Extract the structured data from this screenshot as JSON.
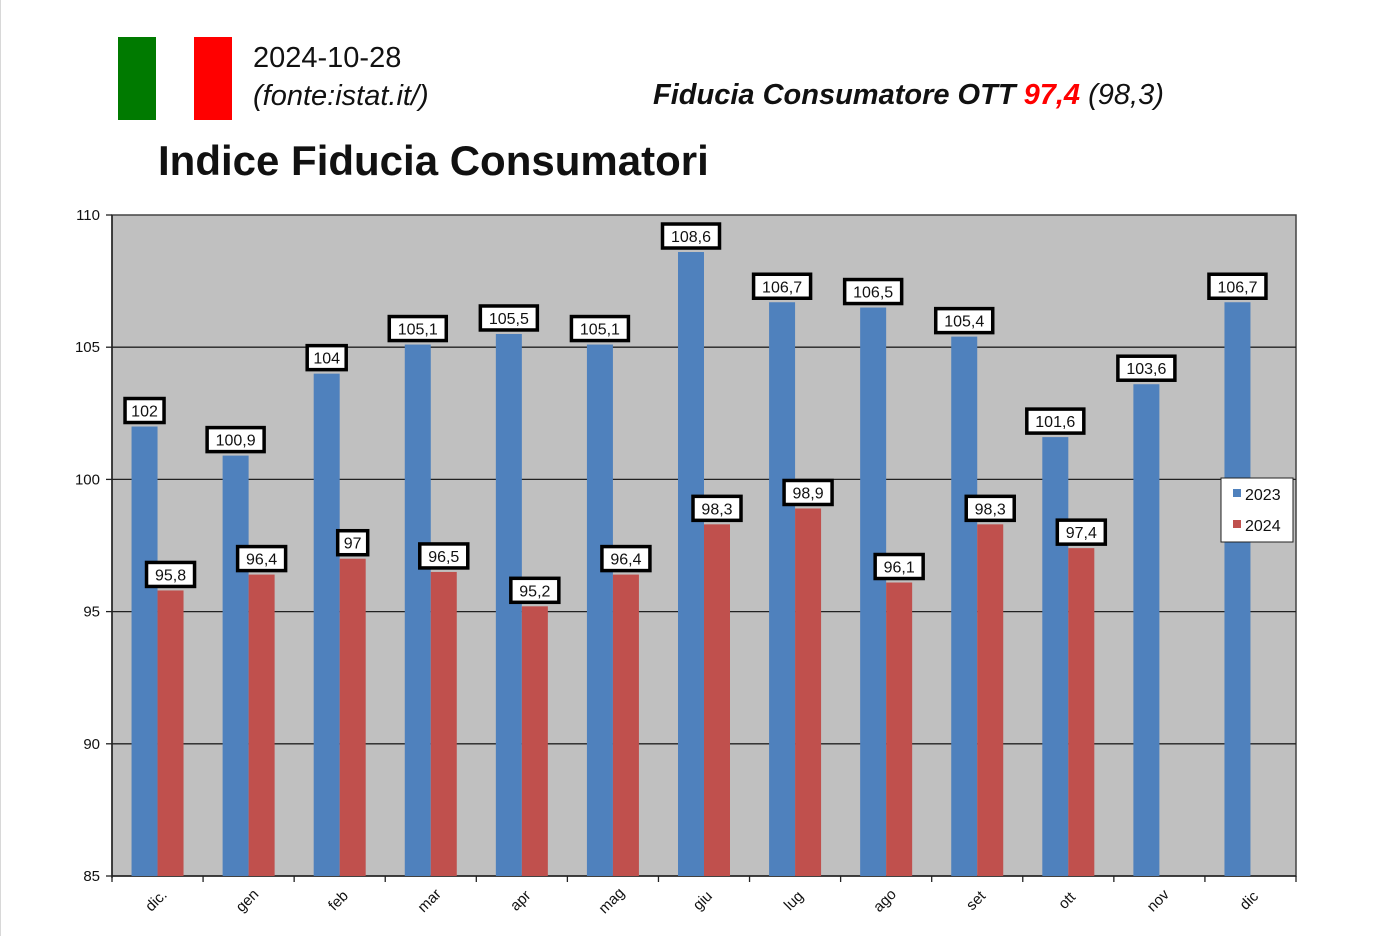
{
  "header": {
    "flag": {
      "colors": [
        "#007a00",
        "#ffffff",
        "#ff0000"
      ]
    },
    "date": "2024-10-28",
    "source_prefix": "(fonte:",
    "source_link": "istat.it/",
    "source_suffix": ")",
    "headline_label": "Fiducia Consumatore OTT",
    "headline_value": "97,4",
    "headline_prev": "(98,3)"
  },
  "chart_data": {
    "type": "bar",
    "title": "Indice Fiducia Consumatori",
    "xlabel": "",
    "ylabel": "",
    "ylim": [
      85,
      110
    ],
    "yticks": [
      85,
      90,
      95,
      100,
      105,
      110
    ],
    "grid": true,
    "legend_position": "right",
    "categories": [
      "dic.",
      "gen",
      "feb",
      "mar",
      "apr",
      "mag",
      "giu",
      "lug",
      "ago",
      "set",
      "ott",
      "nov",
      "dic"
    ],
    "series": [
      {
        "name": "2023",
        "color": "#4f81bd",
        "values": [
          102,
          100.9,
          104,
          105.1,
          105.5,
          105.1,
          108.6,
          106.7,
          106.5,
          105.4,
          101.6,
          103.6,
          106.7
        ],
        "labels": [
          "102",
          "100,9",
          "104",
          "105,1",
          "105,5",
          "105,1",
          "108,6",
          "106,7",
          "106,5",
          "105,4",
          "101,6",
          "103,6",
          "106,7"
        ]
      },
      {
        "name": "2024",
        "color": "#c0504d",
        "values": [
          95.8,
          96.4,
          97,
          96.5,
          95.2,
          96.4,
          98.3,
          98.9,
          96.1,
          98.3,
          97.4,
          null,
          null
        ],
        "labels": [
          "95,8",
          "96,4",
          "97",
          "96,5",
          "95,2",
          "96,4",
          "98,3",
          "98,9",
          "96,1",
          "98,3",
          "97,4",
          null,
          null
        ]
      }
    ],
    "plot_background": "#c0c0c0"
  }
}
